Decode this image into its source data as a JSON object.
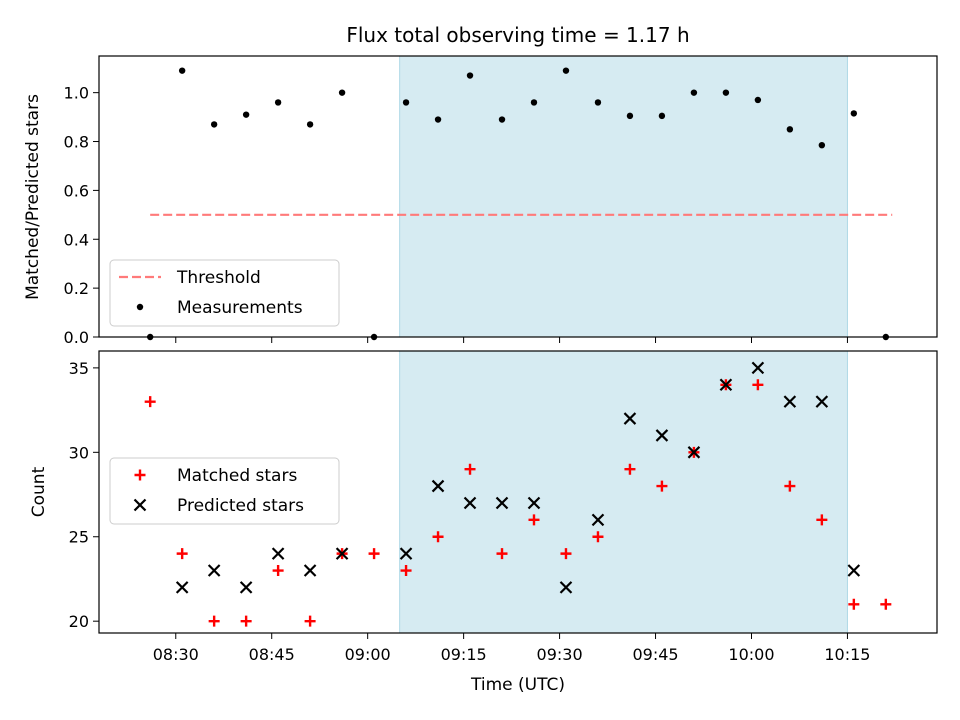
{
  "chart_data": [
    {
      "type": "scatter",
      "title": "Flux total observing time = 1.17 h",
      "xlabel": "",
      "ylabel": "Matched/Predicted stars",
      "ylim": [
        0,
        1.15
      ],
      "yticks": [
        "0.0",
        "0.2",
        "0.4",
        "0.6",
        "0.8",
        "1.0"
      ],
      "yticks_values": [
        0,
        0.2,
        0.4,
        0.6,
        0.8,
        1.0
      ],
      "shaded_region": {
        "start": "09:05",
        "end": "10:15",
        "color": "#add8e6"
      },
      "legend": {
        "placement": "lower-left",
        "entries": [
          "Threshold",
          "Measurements"
        ]
      },
      "series": [
        {
          "name": "Threshold",
          "style": "dashed-line",
          "color": "#ff7a7a",
          "x": [
            "08:26",
            "10:22"
          ],
          "values": [
            0.5,
            0.5
          ]
        },
        {
          "name": "Measurements",
          "style": "dot",
          "color": "#000000",
          "x": [
            "08:26",
            "08:31",
            "08:36",
            "08:41",
            "08:46",
            "08:51",
            "08:56",
            "09:01",
            "09:06",
            "09:11",
            "09:16",
            "09:21",
            "09:26",
            "09:31",
            "09:36",
            "09:41",
            "09:46",
            "09:51",
            "09:56",
            "10:01",
            "10:06",
            "10:11",
            "10:16",
            "10:21"
          ],
          "values": [
            0.0,
            1.09,
            0.87,
            0.91,
            0.96,
            0.87,
            1.0,
            0.0,
            0.96,
            0.89,
            1.07,
            0.89,
            0.96,
            1.09,
            0.96,
            0.905,
            0.905,
            1.0,
            1.0,
            0.97,
            0.85,
            0.785,
            0.915,
            0.0
          ]
        }
      ]
    },
    {
      "type": "scatter",
      "title": "",
      "xlabel": "Time (UTC)",
      "ylabel": "Count",
      "ylim": [
        19.3,
        36
      ],
      "yticks": [
        "20",
        "25",
        "30",
        "35"
      ],
      "yticks_values": [
        20,
        25,
        30,
        35
      ],
      "xticks": [
        "08:30",
        "08:45",
        "09:00",
        "09:15",
        "09:30",
        "09:45",
        "10:00",
        "10:15"
      ],
      "shaded_region": {
        "start": "09:05",
        "end": "10:15",
        "color": "#add8e6"
      },
      "legend": {
        "placement": "center-left",
        "entries": [
          "Matched stars",
          "Predicted stars"
        ]
      },
      "series": [
        {
          "name": "Matched stars",
          "marker": "+",
          "color": "#ff0000",
          "x": [
            "08:26",
            "08:31",
            "08:36",
            "08:41",
            "08:46",
            "08:51",
            "08:56",
            "09:01",
            "09:06",
            "09:11",
            "09:16",
            "09:21",
            "09:26",
            "09:31",
            "09:36",
            "09:41",
            "09:46",
            "09:51",
            "09:56",
            "10:01",
            "10:06",
            "10:11",
            "10:16",
            "10:21"
          ],
          "values": [
            33,
            24,
            20,
            20,
            23,
            20,
            24,
            24,
            23,
            25,
            29,
            24,
            26,
            24,
            25,
            29,
            28,
            30,
            34,
            34,
            28,
            26,
            21,
            21
          ]
        },
        {
          "name": "Predicted stars",
          "marker": "x",
          "color": "#000000",
          "x": [
            "08:31",
            "08:36",
            "08:41",
            "08:46",
            "08:51",
            "08:56",
            "09:06",
            "09:11",
            "09:16",
            "09:21",
            "09:26",
            "09:31",
            "09:36",
            "09:41",
            "09:46",
            "09:51",
            "09:56",
            "10:01",
            "10:06",
            "10:11",
            "10:16"
          ],
          "values": [
            22,
            23,
            22,
            24,
            23,
            24,
            24,
            28,
            27,
            27,
            27,
            22,
            26,
            32,
            31,
            30,
            34,
            35,
            33,
            33,
            23
          ]
        }
      ]
    }
  ]
}
